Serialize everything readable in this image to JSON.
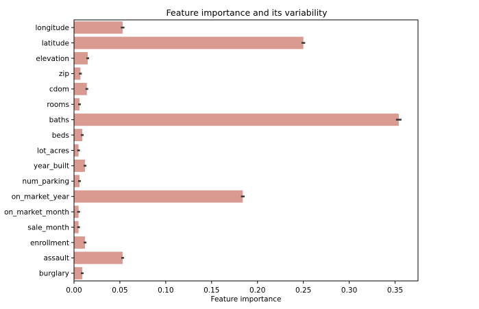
{
  "chart_data": {
    "type": "bar",
    "orientation": "horizontal",
    "title": "Feature importance and its variability",
    "xlabel": "Feature importance",
    "ylabel": "",
    "xlim": [
      0,
      0.375
    ],
    "xticks": [
      0.0,
      0.05,
      0.1,
      0.15,
      0.2,
      0.25,
      0.3,
      0.35
    ],
    "xtick_labels": [
      "0.00",
      "0.05",
      "0.10",
      "0.15",
      "0.20",
      "0.25",
      "0.30",
      "0.35"
    ],
    "grid": false,
    "bar_color": "#d99a92",
    "errorbar_color": "#3a3a3a",
    "categories": [
      "longitude",
      "latitude",
      "elevation",
      "zip",
      "cdom",
      "rooms",
      "baths",
      "beds",
      "lot_acres",
      "year_built",
      "num_parking",
      "on_market_year",
      "on_market_month",
      "sale_month",
      "enrollment",
      "assault",
      "burglary"
    ],
    "values": [
      0.053,
      0.25,
      0.015,
      0.007,
      0.014,
      0.006,
      0.354,
      0.009,
      0.005,
      0.012,
      0.006,
      0.184,
      0.005,
      0.005,
      0.012,
      0.053,
      0.009
    ],
    "errors": [
      0.002,
      0.002,
      0.0,
      0.001,
      0.0008,
      0.0,
      0.003,
      0.0008,
      0.0,
      0.001,
      0.001,
      0.002,
      0.0,
      0.0,
      0.001,
      0.0015,
      0.0008
    ]
  }
}
